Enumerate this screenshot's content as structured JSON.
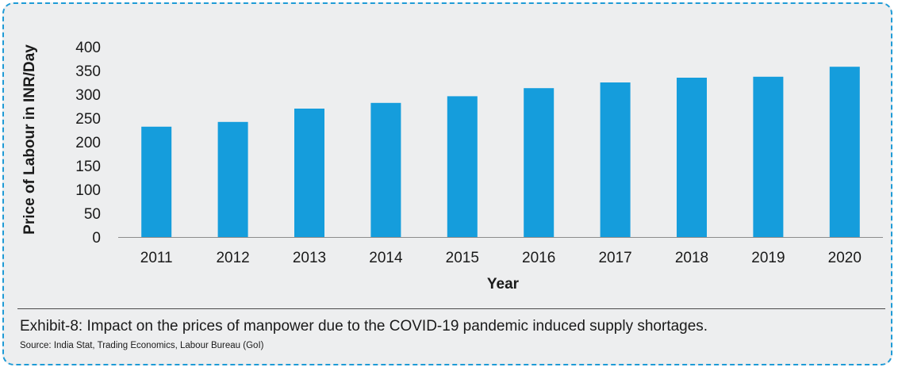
{
  "chart_data": {
    "type": "bar",
    "categories": [
      "2011",
      "2012",
      "2013",
      "2014",
      "2015",
      "2016",
      "2017",
      "2018",
      "2019",
      "2020"
    ],
    "values": [
      232,
      242,
      270,
      282,
      296,
      313,
      325,
      335,
      337,
      358
    ],
    "xlabel": "Year",
    "ylabel": "Price of Labour in INR/Day",
    "ylim": [
      0,
      400
    ],
    "yticks": [
      0,
      50,
      100,
      150,
      200,
      250,
      300,
      350,
      400
    ],
    "grid": false,
    "legend": "none",
    "bar_color": "#159ddc"
  },
  "caption": "Exhibit-8: Impact on the prices of manpower due to the COVID-19 pandemic induced supply shortages.",
  "source": "Source: India Stat, Trading Economics, Labour Bureau (GoI)",
  "frame_border_color": "#1f9bd6",
  "frame_background": "#edeeef"
}
